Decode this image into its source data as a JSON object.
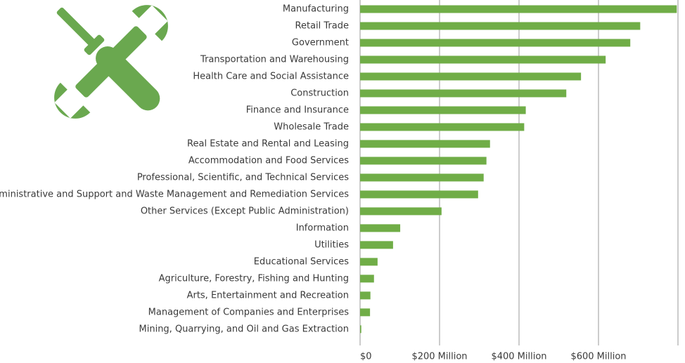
{
  "chart_data": {
    "type": "barh",
    "categories": [
      "Manufacturing",
      "Retail Trade",
      "Government",
      "Transportation and Warehousing",
      "Health Care and Social Assistance",
      "Construction",
      "Finance and Insurance",
      "Wholesale Trade",
      "Real Estate and Rental and Leasing",
      "Accommodation and Food Services",
      "Professional, Scientific, and Technical Services",
      "Administrative and Support and Waste Management and Remediation Services",
      "Other Services (Except Public Administration)",
      "Information",
      "Utilities",
      "Educational Services",
      "Agriculture, Forestry, Fishing and Hunting",
      "Arts, Entertainment and Recreation",
      "Management of Companies and Enterprises",
      "Mining, Quarrying, and Oil and Gas Extraction"
    ],
    "values": [
      797,
      705,
      680,
      618,
      556,
      519,
      417,
      413,
      327,
      318,
      311,
      297,
      205,
      101,
      83,
      44,
      35,
      26,
      25,
      3
    ],
    "color": "#70ad47",
    "xlim": [
      0,
      800
    ],
    "xticks": [
      {
        "value": 0,
        "label": "$0"
      },
      {
        "value": 200,
        "label": "$200 Million"
      },
      {
        "value": 400,
        "label": "$400 Million"
      },
      {
        "value": 600,
        "label": "$600 Million"
      }
    ],
    "grid": true
  }
}
